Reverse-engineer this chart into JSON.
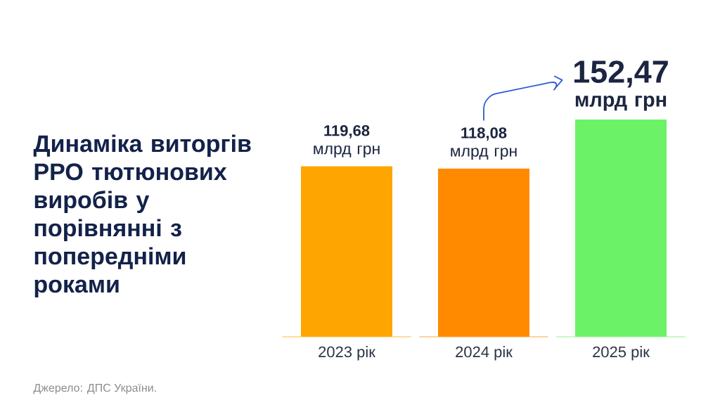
{
  "chart_data": {
    "type": "bar",
    "title": "Динаміка виторгів РРО тютюнових виробів у порівнянні з попередніми роками",
    "categories": [
      "2023 рік",
      "2024 рік",
      "2025 рік"
    ],
    "values": [
      119.68,
      118.08,
      152.47
    ],
    "colors": [
      "#ffa502",
      "#ff8a00",
      "#6cf266"
    ],
    "value_labels": [
      "**119,68** млрд грн",
      "**118,08** млрд грн",
      "**152,47** млрд грн"
    ],
    "annotations": [
      "Джерело: ДПС України."
    ]
  }
}
